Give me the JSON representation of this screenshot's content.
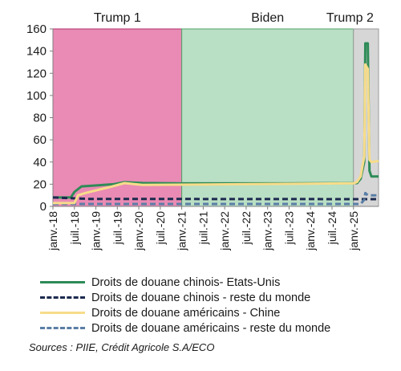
{
  "chart_data": {
    "type": "line",
    "title": "",
    "xlabel": "",
    "ylabel": "",
    "ylim": [
      0,
      160
    ],
    "yticks": [
      0,
      20,
      40,
      60,
      80,
      100,
      120,
      140,
      160
    ],
    "xlim": [
      "2018-01",
      "2025-08"
    ],
    "xticks": [
      {
        "date": "2018-01",
        "label": "janv.-18"
      },
      {
        "date": "2018-07",
        "label": "juil.-18"
      },
      {
        "date": "2019-01",
        "label": "janv.-19"
      },
      {
        "date": "2019-07",
        "label": "juil.-19"
      },
      {
        "date": "2020-01",
        "label": "janv.-20"
      },
      {
        "date": "2020-07",
        "label": "juil.-20"
      },
      {
        "date": "2021-01",
        "label": "janv.-21"
      },
      {
        "date": "2021-07",
        "label": "juil.-21"
      },
      {
        "date": "2022-01",
        "label": "janv.-22"
      },
      {
        "date": "2022-07",
        "label": "juil.-22"
      },
      {
        "date": "2023-01",
        "label": "janv.-23"
      },
      {
        "date": "2023-07",
        "label": "juil.-23"
      },
      {
        "date": "2024-01",
        "label": "janv.-24"
      },
      {
        "date": "2024-07",
        "label": "juil.-24"
      },
      {
        "date": "2025-01",
        "label": "janv.-25"
      }
    ],
    "periods": [
      {
        "label": "Trump 1",
        "start": "2018-01",
        "end": "2021-01",
        "color": "#e98bb4"
      },
      {
        "label": "Biden",
        "start": "2021-01",
        "end": "2025-01",
        "color": "#b9dfc4"
      },
      {
        "label": "Trump 2",
        "start": "2025-01",
        "end": "2025-08",
        "color": "#d6d6d6"
      }
    ],
    "series": [
      {
        "name": "Droits de douane chinois- Etats-Unis",
        "color": "#2e8b57",
        "dash": "solid",
        "points": [
          [
            "2018-01",
            8
          ],
          [
            "2018-06",
            8
          ],
          [
            "2018-07",
            13
          ],
          [
            "2018-09",
            18
          ],
          [
            "2019-06",
            20
          ],
          [
            "2019-09",
            21.8
          ],
          [
            "2020-02",
            21.1
          ],
          [
            "2021-01",
            20.7
          ],
          [
            "2023-06",
            20.7
          ],
          [
            "2025-02",
            21
          ],
          [
            "2025-03",
            25
          ],
          [
            "2025-04",
            40
          ],
          [
            "2025-04-10",
            147
          ],
          [
            "2025-05",
            147
          ],
          [
            "2025-05-15",
            32
          ],
          [
            "2025-06",
            27
          ],
          [
            "2025-08",
            27
          ]
        ]
      },
      {
        "name": "Droits de douane chinois - reste du monde",
        "color": "#1c2a4f",
        "dash": "dash",
        "points": [
          [
            "2018-01",
            8
          ],
          [
            "2018-11",
            6.7
          ],
          [
            "2025-08",
            6.5
          ]
        ]
      },
      {
        "name": "Droits de douane américains - Chine",
        "color": "#f7dc8a",
        "dash": "solid",
        "points": [
          [
            "2018-01",
            3
          ],
          [
            "2018-07",
            3.1
          ],
          [
            "2018-08",
            10
          ],
          [
            "2018-10",
            12
          ],
          [
            "2019-05",
            17.5
          ],
          [
            "2019-09",
            21
          ],
          [
            "2020-02",
            19.3
          ],
          [
            "2025-01",
            20.8
          ],
          [
            "2025-02",
            22
          ],
          [
            "2025-03",
            27
          ],
          [
            "2025-04",
            45
          ],
          [
            "2025-04-10",
            128
          ],
          [
            "2025-05",
            124
          ],
          [
            "2025-05-15",
            42
          ],
          [
            "2025-06",
            40
          ],
          [
            "2025-08",
            41
          ]
        ]
      },
      {
        "name": "Droits de douane américains - reste du monde",
        "color": "#5a7ea6",
        "dash": "dash",
        "points": [
          [
            "2018-01",
            2.2
          ],
          [
            "2025-03",
            2.2
          ],
          [
            "2025-04",
            6
          ],
          [
            "2025-04-10",
            12
          ],
          [
            "2025-05",
            10
          ],
          [
            "2025-08",
            10
          ]
        ]
      }
    ]
  },
  "source": "Sources : PIIE, Crédit Agricole S.A/ECO"
}
